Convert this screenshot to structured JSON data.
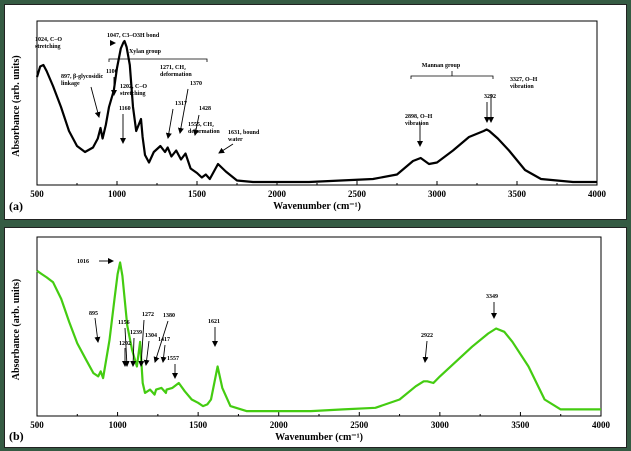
{
  "colors": {
    "background": "#355b43",
    "series_a": "#000000",
    "series_b": "#44cc11"
  },
  "chart_data": [
    {
      "type": "line",
      "panel_label": "(a)",
      "xlabel": "Wavenumber (cm⁻¹)",
      "ylabel": "Absorbance (arb. units)",
      "xlim": [
        500,
        4000
      ],
      "xticks": [
        "500",
        "1000",
        "1500",
        "2000",
        "2500",
        "3000",
        "3500",
        "4000"
      ],
      "grid": false,
      "series": [
        {
          "x": [
            500,
            520,
            540,
            560,
            600,
            650,
            700,
            750,
            800,
            850,
            880,
            897,
            910,
            930,
            950,
            980,
            1000,
            1024,
            1040,
            1047,
            1060,
            1080,
            1100,
            1120,
            1150,
            1160,
            1175,
            1200,
            1230,
            1271,
            1300,
            1317,
            1340,
            1370,
            1400,
            1428,
            1460,
            1500,
            1530,
            1555,
            1580,
            1631,
            1680,
            1750,
            1850,
            2000,
            2200,
            2400,
            2600,
            2750,
            2850,
            2898,
            2950,
            3000,
            3100,
            3200,
            3292,
            3310,
            3327,
            3380,
            3450,
            3550,
            3650,
            3750,
            3850,
            4000
          ],
          "y": [
            0.72,
            0.79,
            0.8,
            0.76,
            0.66,
            0.52,
            0.36,
            0.26,
            0.22,
            0.25,
            0.31,
            0.38,
            0.31,
            0.4,
            0.52,
            0.63,
            0.78,
            0.91,
            0.95,
            0.96,
            0.92,
            0.8,
            0.52,
            0.36,
            0.44,
            0.32,
            0.2,
            0.15,
            0.22,
            0.26,
            0.22,
            0.25,
            0.19,
            0.23,
            0.17,
            0.21,
            0.11,
            0.08,
            0.05,
            0.07,
            0.04,
            0.14,
            0.09,
            0.03,
            0.02,
            0.02,
            0.02,
            0.03,
            0.04,
            0.07,
            0.16,
            0.18,
            0.14,
            0.15,
            0.23,
            0.32,
            0.36,
            0.37,
            0.36,
            0.31,
            0.23,
            0.1,
            0.04,
            0.03,
            0.02,
            0.02
          ]
        }
      ],
      "annotations": [
        {
          "lines": [
            "1024, C–O",
            "stretching"
          ]
        },
        {
          "lines": [
            "1047, C3–O3H bond"
          ]
        },
        {
          "lines": [
            "897, β-glycosidic",
            "linkage"
          ]
        },
        {
          "lines": [
            "Xylan group"
          ]
        },
        {
          "lines": [
            "1100"
          ]
        },
        {
          "lines": [
            "1271, CH₂",
            "deformation"
          ]
        },
        {
          "lines": [
            "1370"
          ]
        },
        {
          "lines": [
            "1202, C–O",
            "stretching"
          ]
        },
        {
          "lines": [
            "1160"
          ]
        },
        {
          "lines": [
            "1317"
          ]
        },
        {
          "lines": [
            "1428"
          ]
        },
        {
          "lines": [
            "1555, CH₂",
            "deformation"
          ]
        },
        {
          "lines": [
            "1631, bound",
            "water"
          ]
        },
        {
          "lines": [
            "Mannan group"
          ]
        },
        {
          "lines": [
            "2898, O–H",
            "vibration"
          ]
        },
        {
          "lines": [
            "3292"
          ]
        },
        {
          "lines": [
            "3327, O–H",
            "vibration"
          ]
        }
      ]
    },
    {
      "type": "line",
      "panel_label": "(b)",
      "xlabel": "Wavenumber (cm⁻¹)",
      "ylabel": "Absorbance (arb. units)",
      "xlim": [
        500,
        4000
      ],
      "xticks": [
        "500",
        "1000",
        "1500",
        "2000",
        "2500",
        "3000",
        "3500",
        "4000"
      ],
      "grid": false,
      "series": [
        {
          "x": [
            500,
            530,
            560,
            600,
            650,
            700,
            750,
            800,
            850,
            880,
            895,
            910,
            950,
            980,
            1000,
            1016,
            1030,
            1060,
            1090,
            1120,
            1140,
            1156,
            1170,
            1202,
            1230,
            1239,
            1272,
            1300,
            1304,
            1340,
            1380,
            1417,
            1460,
            1500,
            1530,
            1557,
            1580,
            1600,
            1621,
            1650,
            1700,
            1800,
            2000,
            2200,
            2400,
            2600,
            2750,
            2850,
            2900,
            2922,
            2960,
            3000,
            3100,
            3200,
            3300,
            3349,
            3400,
            3450,
            3550,
            3650,
            3750,
            3850,
            4000
          ],
          "y": [
            0.88,
            0.86,
            0.84,
            0.81,
            0.71,
            0.57,
            0.44,
            0.35,
            0.26,
            0.24,
            0.27,
            0.23,
            0.46,
            0.7,
            0.86,
            0.93,
            0.85,
            0.55,
            0.4,
            0.3,
            0.45,
            0.2,
            0.14,
            0.16,
            0.13,
            0.16,
            0.17,
            0.14,
            0.16,
            0.17,
            0.2,
            0.15,
            0.1,
            0.08,
            0.06,
            0.07,
            0.1,
            0.2,
            0.3,
            0.17,
            0.06,
            0.03,
            0.03,
            0.03,
            0.04,
            0.05,
            0.1,
            0.18,
            0.21,
            0.21,
            0.2,
            0.24,
            0.33,
            0.42,
            0.5,
            0.53,
            0.51,
            0.45,
            0.3,
            0.1,
            0.04,
            0.04,
            0.04
          ]
        }
      ],
      "annotations": [
        {
          "lines": [
            "1016"
          ]
        },
        {
          "lines": [
            "895"
          ]
        },
        {
          "lines": [
            "1156"
          ]
        },
        {
          "lines": [
            "1239"
          ]
        },
        {
          "lines": [
            "1202"
          ]
        },
        {
          "lines": [
            "1272"
          ]
        },
        {
          "lines": [
            "1304"
          ]
        },
        {
          "lines": [
            "1380"
          ]
        },
        {
          "lines": [
            "1417"
          ]
        },
        {
          "lines": [
            "1557"
          ]
        },
        {
          "lines": [
            "1621"
          ]
        },
        {
          "lines": [
            "2922"
          ]
        },
        {
          "lines": [
            "3349"
          ]
        }
      ]
    }
  ]
}
